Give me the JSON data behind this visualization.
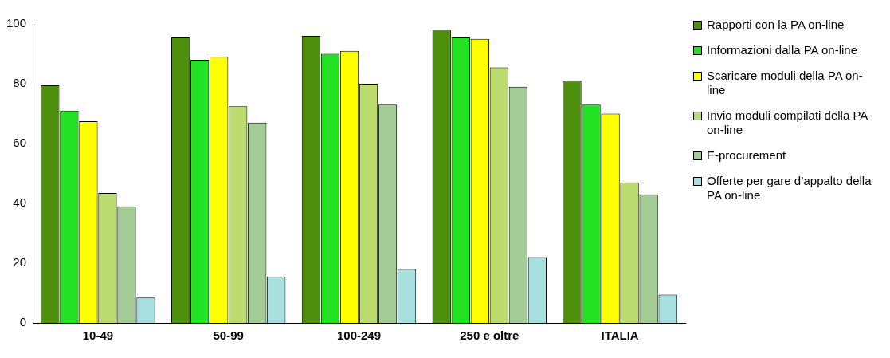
{
  "chart_data": {
    "type": "bar",
    "categories": [
      "10-49",
      "50-99",
      "100-249",
      "250 e oltre",
      "ITALIA"
    ],
    "series": [
      {
        "name": "Rapporti con la PA on-line",
        "color": "#4e8f0e",
        "values": [
          79.5,
          95.5,
          96,
          98,
          81
        ]
      },
      {
        "name": "Informazioni dalla PA on-line",
        "color": "#22e022",
        "values": [
          71,
          88,
          90,
          95.5,
          73
        ]
      },
      {
        "name": "Scaricare moduli  della PA on-line",
        "color": "#ffff00",
        "values": [
          67.5,
          89,
          91,
          95,
          70
        ]
      },
      {
        "name": "Invio moduli compilati della PA on-line",
        "color": "#bcdc70",
        "values": [
          43.5,
          72.5,
          80,
          85.5,
          47
        ]
      },
      {
        "name": "E-procurement",
        "color": "#a3cc96",
        "values": [
          39,
          67,
          73,
          79,
          43
        ]
      },
      {
        "name": "Offerte per gare d’appalto della PA on-line",
        "color": "#a8e0e0",
        "values": [
          8.5,
          15.5,
          18,
          22,
          9.5
        ]
      }
    ],
    "ylim": [
      0,
      100
    ],
    "yticks": [
      0,
      20,
      40,
      60,
      80,
      100
    ],
    "grid": false,
    "legend": "right"
  }
}
